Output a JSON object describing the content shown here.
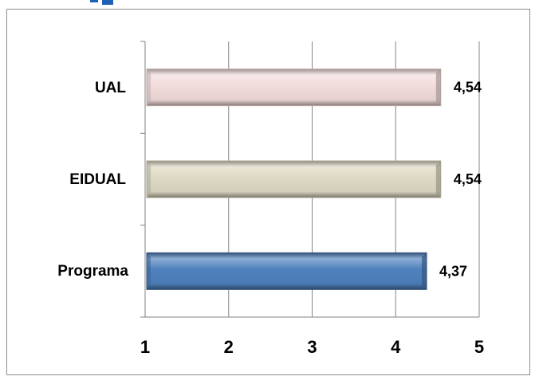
{
  "chart_data": {
    "type": "bar",
    "orientation": "horizontal",
    "title": "",
    "xlabel": "",
    "ylabel": "",
    "categories": [
      "UAL",
      "EIDUAL",
      "Programa"
    ],
    "values": [
      4.54,
      4.54,
      4.37
    ],
    "value_labels": [
      "4,54",
      "4,54",
      "4,37"
    ],
    "xlim": [
      1,
      5
    ],
    "x_ticks": [
      1,
      2,
      3,
      4,
      5
    ],
    "x_tick_labels": [
      "1",
      "2",
      "3",
      "4",
      "5"
    ],
    "grid": "vertical",
    "legend": "none",
    "bar_style": "3d-cylinder",
    "colors": [
      "#f2dcdb",
      "#ddd9c3",
      "#4f81bd"
    ],
    "edge_colors": [
      "#b9a9a8",
      "#aaa68f",
      "#2c4d75"
    ]
  }
}
